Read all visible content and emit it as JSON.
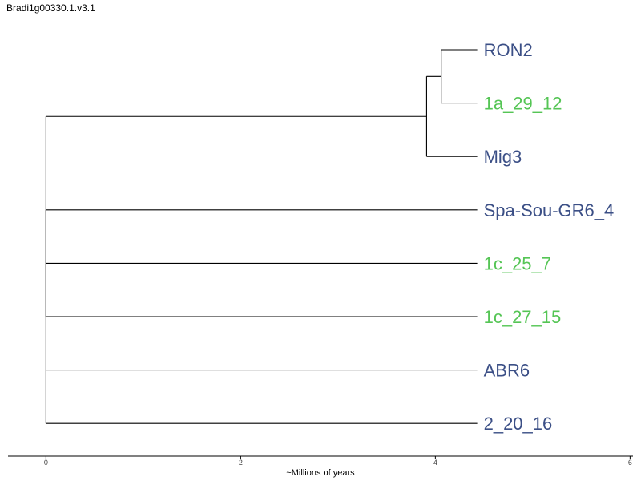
{
  "title": "Bradi1g00330.1.v3.1",
  "axis": {
    "label": "~Millions of years",
    "ticks": [
      0,
      2,
      4,
      6
    ],
    "range": [
      -0.39,
      6.03
    ]
  },
  "colors": {
    "blue": "#3b4f86",
    "green": "#55c555",
    "line": "#000000"
  },
  "tree": {
    "root": {
      "x": 0,
      "children": [
        {
          "x": 3.91,
          "children": [
            {
              "x": 4.06,
              "children": [
                {
                  "leaf": "RON2",
                  "color": "blue"
                },
                {
                  "leaf": "1a_29_12",
                  "color": "green"
                }
              ]
            },
            {
              "leaf": "Mig3",
              "color": "blue"
            }
          ]
        },
        {
          "x": 0,
          "children": [
            {
              "leaf": "Spa-Sou-GR6_4",
              "color": "blue"
            },
            {
              "leaf": "1c_25_7",
              "color": "green"
            },
            {
              "leaf": "1c_27_15",
              "color": "green"
            },
            {
              "leaf": "ABR6",
              "color": "blue"
            },
            {
              "leaf": "2_20_16",
              "color": "blue"
            }
          ]
        }
      ]
    },
    "leaf_tip_x": 4.43
  }
}
